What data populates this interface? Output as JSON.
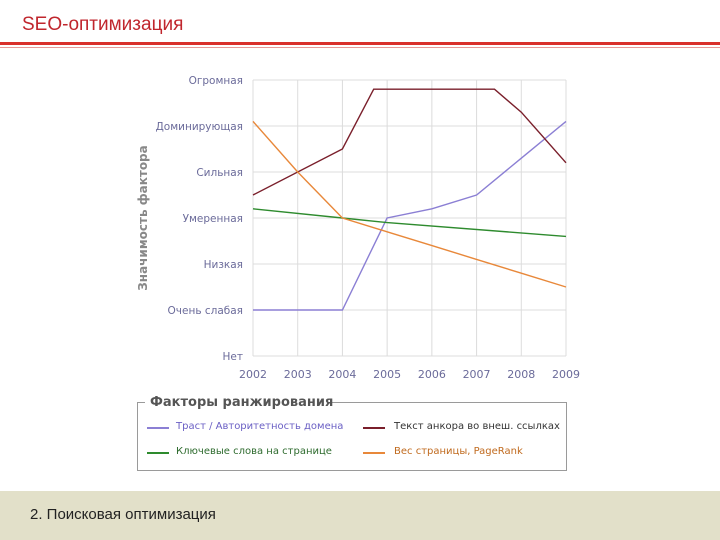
{
  "slide": {
    "title": "SEO-оптимизация",
    "footer": "2. Поисковая оптимизация"
  },
  "colors": {
    "title": "#c0262d",
    "trust": "#8b7fd4",
    "anchor": "#7a1f2b",
    "keywords": "#2e8b2e",
    "pagerank": "#e8883a"
  },
  "chart_data": {
    "type": "line",
    "ylabel": "Значимость фактора",
    "x": [
      "2002",
      "2003",
      "2004",
      "2005",
      "2006",
      "2007",
      "2008",
      "2009"
    ],
    "y_categories": [
      "Нет",
      "Очень слабая",
      "Низкая",
      "Умеренная",
      "Сильная",
      "Доминирующая",
      "Огромная"
    ],
    "ylim": [
      0,
      6
    ],
    "grid": true,
    "legend_title": "Факторы ранжирования",
    "legend_position": "bottom",
    "series": [
      {
        "name": "Траст / Авторитетность домена",
        "color": "#8b7fd4",
        "points": [
          [
            2002,
            1
          ],
          [
            2004,
            1
          ],
          [
            2005,
            3
          ],
          [
            2006,
            3.2
          ],
          [
            2007,
            3.5
          ],
          [
            2008,
            4.3
          ],
          [
            2009,
            5.1
          ]
        ]
      },
      {
        "name": "Текст анкора во внеш. ссылках",
        "color": "#7a1f2b",
        "points": [
          [
            2002,
            3.5
          ],
          [
            2004,
            4.5
          ],
          [
            2004.7,
            5.8
          ],
          [
            2007.4,
            5.8
          ],
          [
            2008,
            5.3
          ],
          [
            2009,
            4.2
          ]
        ]
      },
      {
        "name": "Ключевые слова на странице",
        "color": "#2e8b2e",
        "points": [
          [
            2002,
            3.2
          ],
          [
            2004,
            3
          ],
          [
            2005,
            2.9
          ],
          [
            2009,
            2.6
          ]
        ]
      },
      {
        "name": "Вес страницы, PageRank",
        "color": "#e8883a",
        "points": [
          [
            2002,
            5.1
          ],
          [
            2003,
            4
          ],
          [
            2004,
            3
          ],
          [
            2005,
            2.7
          ],
          [
            2006,
            2.4
          ],
          [
            2007,
            2.1
          ],
          [
            2008,
            1.8
          ],
          [
            2009,
            1.5
          ]
        ]
      }
    ]
  }
}
